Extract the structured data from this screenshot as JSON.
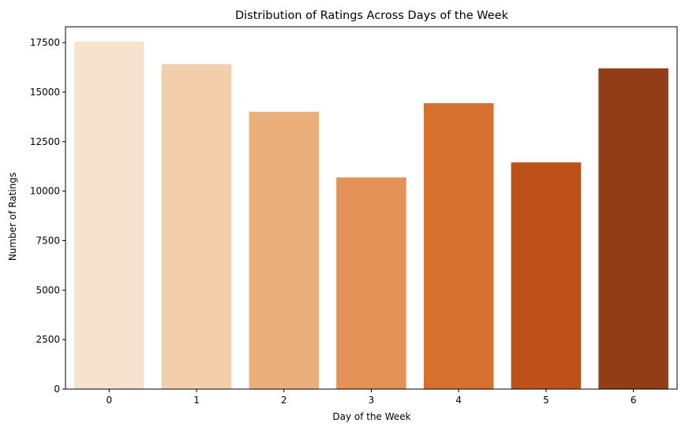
{
  "chart_data": {
    "type": "bar",
    "title": "Distribution of Ratings Across Days of the Week",
    "xlabel": "Day of the Week",
    "ylabel": "Number of Ratings",
    "categories": [
      "0",
      "1",
      "2",
      "3",
      "4",
      "5",
      "6"
    ],
    "values": [
      17560,
      16410,
      14010,
      10690,
      14440,
      11450,
      16200
    ],
    "colors": [
      "#f6e3cf",
      "#f2ceaa",
      "#ebaf7b",
      "#e49157",
      "#d5702e",
      "#bc521a",
      "#923d18"
    ],
    "ylim": [
      0,
      18300
    ],
    "yticks": [
      0,
      2500,
      5000,
      7500,
      10000,
      12500,
      15000,
      17500
    ],
    "grid": false,
    "legend": "none"
  }
}
